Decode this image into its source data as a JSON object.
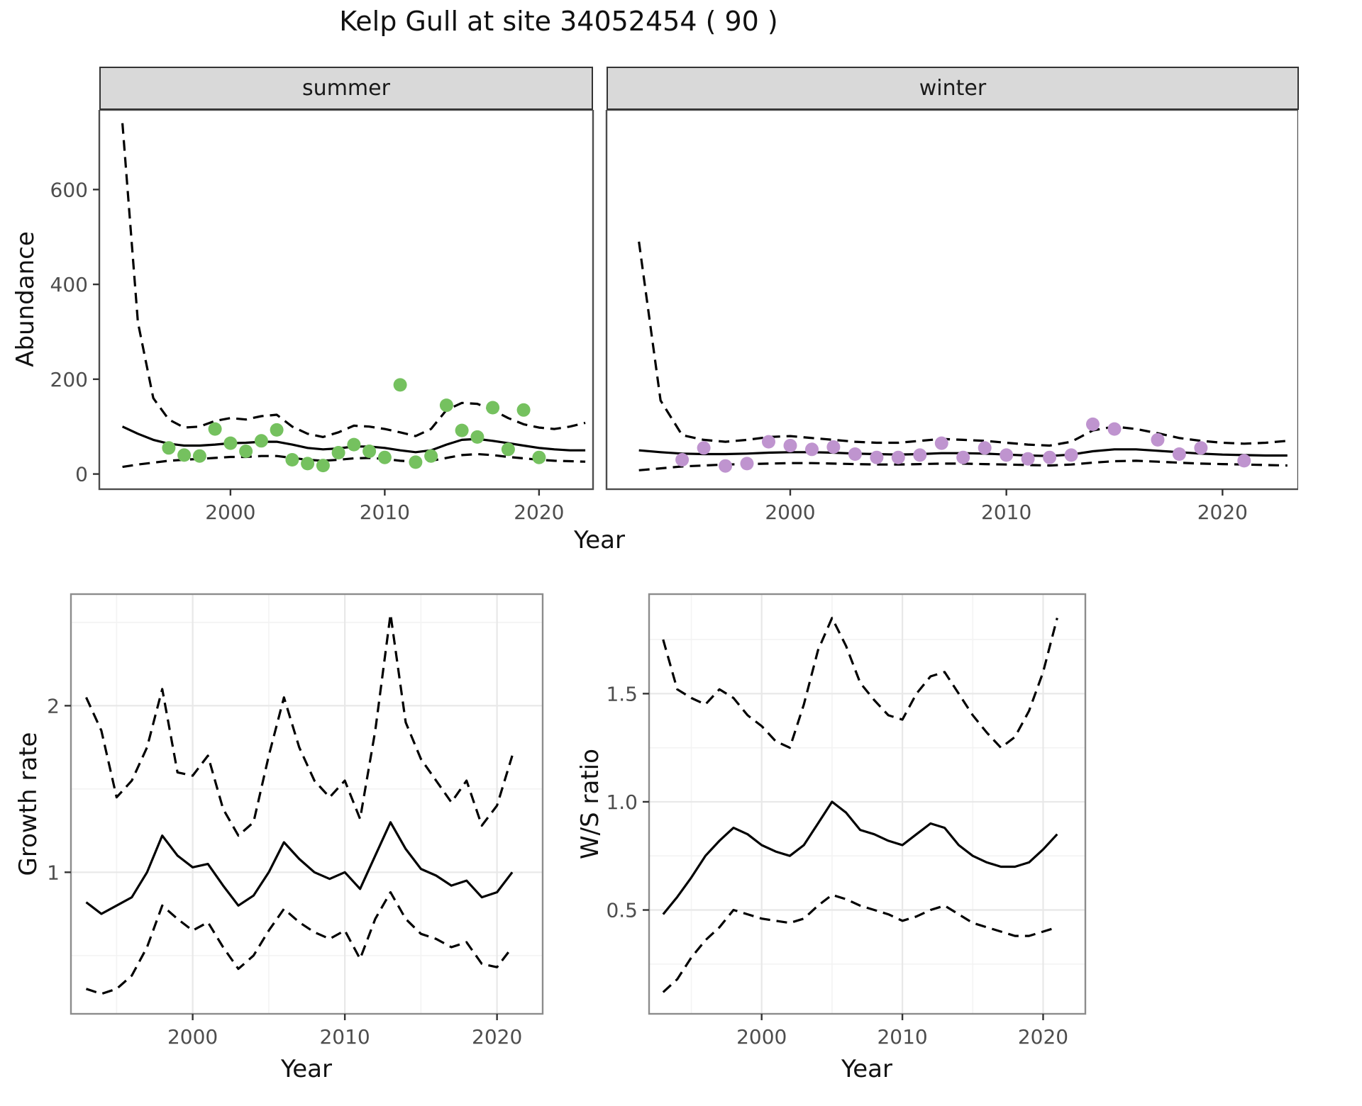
{
  "title": "Kelp Gull at site 34052454 ( 90 )",
  "axis_labels": {
    "abundance": "Abundance",
    "year_top": "Year",
    "growth": "Growth rate",
    "year_growth": "Year",
    "ws": "W/S ratio",
    "year_ws": "Year"
  },
  "colors": {
    "summer_points": "#75c15f",
    "winter_points": "#bf94cf",
    "fit_line": "#000000",
    "strip_background": "#d9d9d9",
    "grid_major": "#e8e8e8"
  },
  "chart_data": [
    {
      "type": "scatter",
      "facet_label": "summer",
      "xlabel": "Year",
      "ylabel": "Abundance",
      "xlim": [
        1991.5,
        2023.5
      ],
      "ylim": [
        -32,
        768
      ],
      "xticks": [
        2000,
        2010,
        2020
      ],
      "xtick_labels": [
        "2000",
        "2010",
        "2020"
      ],
      "yticks": [
        0,
        200,
        400,
        600
      ],
      "ytick_labels": [
        "0",
        "200",
        "400",
        "600"
      ],
      "x": [
        1993,
        1994,
        1995,
        1996,
        1997,
        1998,
        1999,
        2000,
        2001,
        2002,
        2003,
        2004,
        2005,
        2006,
        2007,
        2008,
        2009,
        2010,
        2011,
        2012,
        2013,
        2014,
        2015,
        2016,
        2017,
        2018,
        2019,
        2020,
        2021,
        2022,
        2023
      ],
      "series": [
        {
          "name": "fit",
          "dashed": false,
          "y": [
            100,
            85,
            72,
            64,
            60,
            60,
            62,
            65,
            66,
            68,
            68,
            62,
            55,
            52,
            54,
            58,
            58,
            55,
            50,
            46,
            50,
            62,
            72,
            74,
            70,
            65,
            60,
            55,
            52,
            50,
            50
          ]
        },
        {
          "name": "upper_ci",
          "dashed": true,
          "y": [
            740,
            320,
            160,
            115,
            98,
            100,
            112,
            118,
            115,
            122,
            125,
            100,
            85,
            78,
            88,
            102,
            100,
            95,
            88,
            80,
            95,
            135,
            150,
            148,
            135,
            118,
            105,
            98,
            95,
            100,
            108
          ]
        },
        {
          "name": "lower_ci",
          "dashed": true,
          "y": [
            15,
            20,
            24,
            28,
            30,
            32,
            34,
            36,
            36,
            38,
            38,
            34,
            30,
            28,
            30,
            33,
            34,
            32,
            28,
            26,
            28,
            34,
            40,
            42,
            40,
            36,
            33,
            30,
            28,
            27,
            26
          ]
        }
      ],
      "points": {
        "color": "#75c15f",
        "x": [
          1996,
          1997,
          1998,
          1999,
          2000,
          2001,
          2002,
          2003,
          2004,
          2005,
          2006,
          2007,
          2008,
          2009,
          2010,
          2011,
          2012,
          2013,
          2014,
          2015,
          2016,
          2017,
          2018,
          2019,
          2020
        ],
        "y": [
          55,
          40,
          38,
          95,
          65,
          48,
          70,
          93,
          30,
          22,
          18,
          45,
          62,
          48,
          35,
          188,
          25,
          38,
          145,
          92,
          78,
          140,
          52,
          135,
          35
        ]
      }
    },
    {
      "type": "scatter",
      "facet_label": "winter",
      "xlabel": "Year",
      "ylabel": "Abundance",
      "xlim": [
        1991.5,
        2023.5
      ],
      "ylim": [
        -32,
        768
      ],
      "xticks": [
        2000,
        2010,
        2020
      ],
      "xtick_labels": [
        "2000",
        "2010",
        "2020"
      ],
      "yticks": [
        0,
        200,
        400,
        600
      ],
      "ytick_labels": [
        "0",
        "200",
        "400",
        "600"
      ],
      "x": [
        1993,
        1994,
        1995,
        1996,
        1997,
        1998,
        1999,
        2000,
        2001,
        2002,
        2003,
        2004,
        2005,
        2006,
        2007,
        2008,
        2009,
        2010,
        2011,
        2012,
        2013,
        2014,
        2015,
        2016,
        2017,
        2018,
        2019,
        2020,
        2021,
        2022,
        2023
      ],
      "series": [
        {
          "name": "fit",
          "dashed": false,
          "y": [
            50,
            46,
            43,
            42,
            42,
            43,
            45,
            46,
            46,
            45,
            43,
            42,
            41,
            42,
            44,
            44,
            43,
            41,
            39,
            38,
            41,
            48,
            52,
            52,
            49,
            46,
            43,
            41,
            40,
            39,
            39
          ]
        },
        {
          "name": "upper_ci",
          "dashed": true,
          "y": [
            490,
            155,
            82,
            72,
            68,
            72,
            78,
            80,
            76,
            72,
            68,
            66,
            66,
            70,
            74,
            72,
            70,
            66,
            62,
            60,
            68,
            92,
            100,
            95,
            86,
            76,
            70,
            66,
            64,
            66,
            70
          ]
        },
        {
          "name": "lower_ci",
          "dashed": true,
          "y": [
            8,
            12,
            16,
            18,
            20,
            21,
            22,
            23,
            23,
            22,
            21,
            20,
            20,
            21,
            22,
            22,
            21,
            20,
            19,
            18,
            20,
            24,
            27,
            28,
            26,
            24,
            22,
            21,
            20,
            19,
            18
          ]
        }
      ],
      "points": {
        "color": "#bf94cf",
        "x": [
          1995,
          1996,
          1997,
          1998,
          1999,
          2000,
          2001,
          2002,
          2003,
          2004,
          2005,
          2006,
          2007,
          2008,
          2009,
          2010,
          2011,
          2012,
          2013,
          2014,
          2015,
          2017,
          2018,
          2019,
          2021
        ],
        "y": [
          30,
          55,
          17,
          22,
          68,
          60,
          52,
          57,
          42,
          35,
          35,
          40,
          65,
          35,
          55,
          40,
          32,
          35,
          40,
          105,
          95,
          72,
          42,
          55,
          28
        ]
      }
    },
    {
      "type": "line",
      "title": "Growth rate",
      "xlabel": "Year",
      "ylabel": "Growth rate",
      "xlim": [
        1992,
        2023
      ],
      "ylim": [
        0.15,
        2.67
      ],
      "xticks": [
        2000,
        2010,
        2020
      ],
      "xtick_labels": [
        "2000",
        "2010",
        "2020"
      ],
      "yticks": [
        1,
        2
      ],
      "ytick_labels": [
        "1",
        "2"
      ],
      "xminor": [
        1995,
        2005,
        2015
      ],
      "yminor": [
        0.5,
        1.5,
        2.5
      ],
      "x": [
        1993,
        1994,
        1995,
        1996,
        1997,
        1998,
        1999,
        2000,
        2001,
        2002,
        2003,
        2004,
        2005,
        2006,
        2007,
        2008,
        2009,
        2010,
        2011,
        2012,
        2013,
        2014,
        2015,
        2016,
        2017,
        2018,
        2019,
        2020,
        2021
      ],
      "series": [
        {
          "name": "fit",
          "dashed": false,
          "y": [
            0.82,
            0.75,
            0.8,
            0.85,
            1.0,
            1.22,
            1.1,
            1.03,
            1.05,
            0.92,
            0.8,
            0.86,
            1.0,
            1.18,
            1.08,
            1.0,
            0.96,
            1.0,
            0.9,
            1.1,
            1.3,
            1.14,
            1.02,
            0.98,
            0.92,
            0.95,
            0.85,
            0.88,
            1.0
          ]
        },
        {
          "name": "upper_ci",
          "dashed": true,
          "y": [
            2.05,
            1.85,
            1.45,
            1.55,
            1.75,
            2.1,
            1.6,
            1.58,
            1.7,
            1.38,
            1.22,
            1.3,
            1.7,
            2.05,
            1.75,
            1.55,
            1.45,
            1.55,
            1.32,
            1.85,
            2.55,
            1.9,
            1.68,
            1.55,
            1.42,
            1.55,
            1.28,
            1.4,
            1.7
          ]
        },
        {
          "name": "lower_ci",
          "dashed": true,
          "y": [
            0.3,
            0.27,
            0.3,
            0.38,
            0.55,
            0.8,
            0.72,
            0.65,
            0.7,
            0.55,
            0.42,
            0.5,
            0.65,
            0.78,
            0.7,
            0.64,
            0.6,
            0.65,
            0.48,
            0.72,
            0.88,
            0.72,
            0.63,
            0.6,
            0.55,
            0.58,
            0.45,
            0.43,
            0.55
          ]
        }
      ]
    },
    {
      "type": "line",
      "title": "W/S ratio",
      "xlabel": "Year",
      "ylabel": "W/S ratio",
      "xlim": [
        1992,
        2023
      ],
      "ylim": [
        0.02,
        1.96
      ],
      "xticks": [
        2000,
        2010,
        2020
      ],
      "xtick_labels": [
        "2000",
        "2010",
        "2020"
      ],
      "yticks": [
        0.5,
        1.0,
        1.5
      ],
      "ytick_labels": [
        "0.5",
        "1.0",
        "1.5"
      ],
      "xminor": [
        1995,
        2005,
        2015
      ],
      "yminor": [
        0.25,
        0.75,
        1.25,
        1.75
      ],
      "x": [
        1993,
        1994,
        1995,
        1996,
        1997,
        1998,
        1999,
        2000,
        2001,
        2002,
        2003,
        2004,
        2005,
        2006,
        2007,
        2008,
        2009,
        2010,
        2011,
        2012,
        2013,
        2014,
        2015,
        2016,
        2017,
        2018,
        2019,
        2020,
        2021
      ],
      "series": [
        {
          "name": "fit",
          "dashed": false,
          "y": [
            0.48,
            0.56,
            0.65,
            0.75,
            0.82,
            0.88,
            0.85,
            0.8,
            0.77,
            0.75,
            0.8,
            0.9,
            1.0,
            0.95,
            0.87,
            0.85,
            0.82,
            0.8,
            0.85,
            0.9,
            0.88,
            0.8,
            0.75,
            0.72,
            0.7,
            0.7,
            0.72,
            0.78,
            0.85
          ]
        },
        {
          "name": "upper_ci",
          "dashed": true,
          "y": [
            1.75,
            1.52,
            1.48,
            1.45,
            1.52,
            1.48,
            1.4,
            1.35,
            1.28,
            1.25,
            1.45,
            1.7,
            1.85,
            1.72,
            1.55,
            1.47,
            1.4,
            1.38,
            1.5,
            1.58,
            1.6,
            1.5,
            1.4,
            1.32,
            1.25,
            1.3,
            1.42,
            1.6,
            1.85
          ]
        },
        {
          "name": "lower_ci",
          "dashed": true,
          "y": [
            0.12,
            0.18,
            0.28,
            0.36,
            0.42,
            0.5,
            0.48,
            0.46,
            0.45,
            0.44,
            0.46,
            0.52,
            0.57,
            0.55,
            0.52,
            0.5,
            0.48,
            0.45,
            0.47,
            0.5,
            0.52,
            0.48,
            0.44,
            0.42,
            0.4,
            0.38,
            0.38,
            0.4,
            0.42
          ]
        }
      ]
    }
  ]
}
